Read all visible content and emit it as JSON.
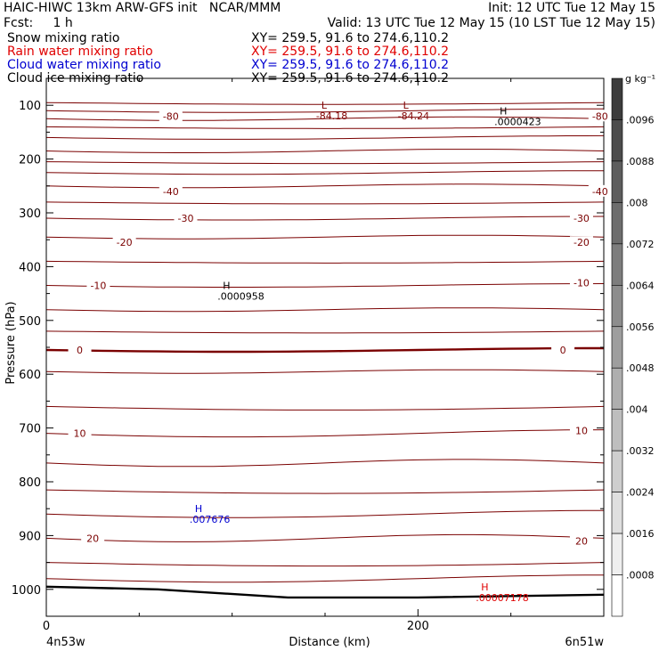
{
  "header": {
    "line1_left": "HAIC-HIWC 13km ARW-GFS init   NCAR/MMM",
    "line1_right": "Init: 12 UTC Tue 12 May 15",
    "line2_left": "Fcst:     1 h",
    "line2_right": "Valid: 13 UTC Tue 12 May 15 (10 LST Tue 12 May 15)",
    "fields": [
      {
        "label": "Snow mixing ratio",
        "xy": "XY= 259.5, 91.6 to 274.6,110.2",
        "color": "#000000"
      },
      {
        "label": "Rain water mixing ratio",
        "xy": "XY= 259.5, 91.6 to 274.6,110.2",
        "color": "#e00000"
      },
      {
        "label": "Cloud water mixing ratio",
        "xy": "XY= 259.5, 91.6 to 274.6,110.2",
        "color": "#0000d0"
      },
      {
        "label": "Cloud ice mixing ratio",
        "xy": "XY= 259.5, 91.6 to 274.6,110.2",
        "color": "#000000"
      }
    ]
  },
  "chart_data": {
    "type": "contour",
    "xlabel": "Distance (km)",
    "ylabel": "Pressure (hPa)",
    "x_ticks": [
      0,
      200
    ],
    "x_range": [
      0,
      300
    ],
    "y_ticks": [
      100,
      200,
      300,
      400,
      500,
      600,
      700,
      800,
      900,
      1000
    ],
    "y_range": [
      50,
      1050
    ],
    "x_endpoint_labels": {
      "left": "4n53w",
      "right": "6n51w"
    },
    "colorbar": {
      "unit": "g kg⁻¹",
      "labels": [
        ".0096",
        ".0088",
        ".008",
        ".0072",
        ".0064",
        ".0056",
        ".0048",
        ".004",
        ".0032",
        ".0024",
        ".0016",
        ".0008"
      ]
    },
    "temperature_labels": [
      {
        "text": "-80",
        "x": 67,
        "p": 120
      },
      {
        "text": "-80",
        "x": 298,
        "p": 120
      },
      {
        "text": "-40",
        "x": 67,
        "p": 260
      },
      {
        "text": "-40",
        "x": 298,
        "p": 260
      },
      {
        "text": "-30",
        "x": 75,
        "p": 310
      },
      {
        "text": "-30",
        "x": 288,
        "p": 310
      },
      {
        "text": "-20",
        "x": 42,
        "p": 355
      },
      {
        "text": "-20",
        "x": 288,
        "p": 355
      },
      {
        "text": "-10",
        "x": 28,
        "p": 435
      },
      {
        "text": "-10",
        "x": 288,
        "p": 430
      },
      {
        "text": "0",
        "x": 18,
        "p": 555
      },
      {
        "text": "0",
        "x": 278,
        "p": 555
      },
      {
        "text": "10",
        "x": 18,
        "p": 710
      },
      {
        "text": "10",
        "x": 288,
        "p": 705
      },
      {
        "text": "20",
        "x": 25,
        "p": 905
      },
      {
        "text": "20",
        "x": 288,
        "p": 910
      }
    ],
    "extrema": [
      {
        "type": "L",
        "value": "-84.18",
        "x": 148,
        "p": 110,
        "color": "#800000"
      },
      {
        "type": "L",
        "value": "-84.24",
        "x": 192,
        "p": 110,
        "color": "#800000"
      },
      {
        "type": "H",
        "value": ".0000423",
        "x": 244,
        "p": 120,
        "color": "#000000"
      },
      {
        "type": "H",
        "value": ".0000958",
        "x": 95,
        "p": 445,
        "color": "#000000"
      },
      {
        "type": "H",
        "value": ".007676",
        "x": 80,
        "p": 860,
        "color": "#0000d0"
      },
      {
        "type": "H",
        "value": ".00007178",
        "x": 234,
        "p": 1005,
        "color": "#e00000"
      }
    ],
    "isotherm_levels": [
      95,
      110,
      125,
      140,
      160,
      185,
      205,
      225,
      250,
      280,
      310,
      345,
      390,
      435,
      480,
      520,
      555,
      595,
      660,
      710,
      765,
      815,
      860,
      905,
      950,
      980
    ],
    "bold_isotherm": 555,
    "surface_pressure": [
      {
        "x": 0,
        "p": 995
      },
      {
        "x": 60,
        "p": 1000
      },
      {
        "x": 130,
        "p": 1015
      },
      {
        "x": 200,
        "p": 1015
      },
      {
        "x": 300,
        "p": 1010
      }
    ]
  }
}
